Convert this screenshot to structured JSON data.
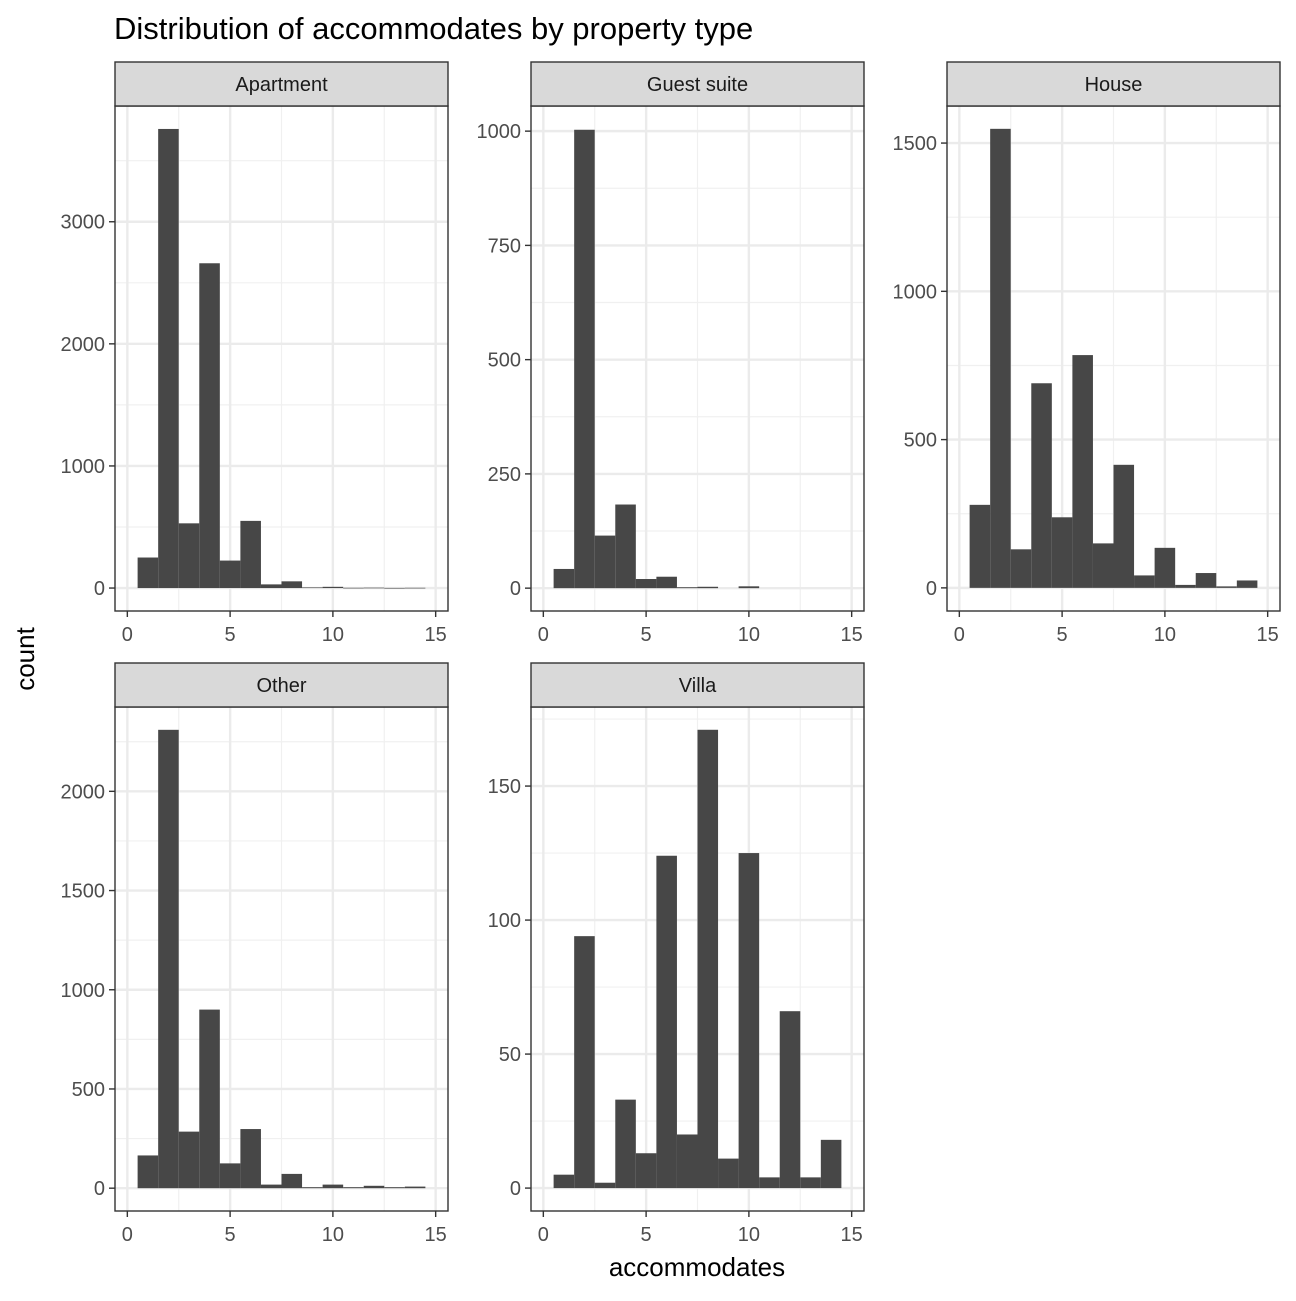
{
  "chart_data": {
    "type": "bar",
    "title": "Distribution of accommodates by property type",
    "xlabel": "accommodates",
    "ylabel": "count",
    "grid": true,
    "bin_width": 1,
    "bin_centers": [
      1,
      2,
      3,
      4,
      5,
      6,
      7,
      8,
      9,
      10,
      11,
      12,
      13,
      14
    ],
    "facets": [
      {
        "name": "Apartment",
        "xlim": [
          -0.6,
          15.6
        ],
        "ylim": [
          -188,
          3948
        ],
        "yticks": [
          0,
          1000,
          2000,
          3000
        ],
        "ytick_labels": [
          "0",
          "1000",
          "2000",
          "3000"
        ],
        "values": [
          250,
          3760,
          530,
          2660,
          225,
          550,
          30,
          55,
          5,
          10,
          2,
          3,
          1,
          2
        ]
      },
      {
        "name": "Guest suite",
        "xlim": [
          -0.6,
          15.6
        ],
        "ylim": [
          -50,
          1055
        ],
        "yticks": [
          0,
          250,
          500,
          750,
          1000
        ],
        "ytick_labels": [
          "0",
          "250",
          "500",
          "750",
          "1000"
        ],
        "values": [
          42,
          1003,
          115,
          183,
          20,
          25,
          2,
          3,
          0,
          4,
          0,
          0,
          0,
          0
        ]
      },
      {
        "name": "House",
        "xlim": [
          -0.6,
          15.6
        ],
        "ylim": [
          -78,
          1625
        ],
        "yticks": [
          0,
          500,
          1000,
          1500
        ],
        "ytick_labels": [
          "0",
          "500",
          "1000",
          "1500"
        ],
        "values": [
          280,
          1548,
          130,
          690,
          238,
          785,
          150,
          415,
          42,
          135,
          10,
          50,
          5,
          25
        ]
      },
      {
        "name": "Other",
        "xlim": [
          -0.6,
          15.6
        ],
        "ylim": [
          -115,
          2425
        ],
        "yticks": [
          0,
          500,
          1000,
          1500,
          2000
        ],
        "ytick_labels": [
          "0",
          "500",
          "1000",
          "1500",
          "2000"
        ],
        "values": [
          165,
          2310,
          285,
          900,
          125,
          298,
          18,
          72,
          5,
          18,
          5,
          12,
          5,
          8
        ]
      },
      {
        "name": "Villa",
        "xlim": [
          -0.6,
          15.6
        ],
        "ylim": [
          -8.55,
          179.5
        ],
        "yticks": [
          0,
          50,
          100,
          150
        ],
        "ytick_labels": [
          "0",
          "50",
          "100",
          "150"
        ],
        "values": [
          5,
          94,
          2,
          33,
          13,
          124,
          20,
          171,
          11,
          125,
          4,
          66,
          4,
          18
        ]
      }
    ],
    "xticks": [
      0,
      5,
      10,
      15
    ],
    "xtick_labels": [
      "0",
      "5",
      "10",
      "15"
    ]
  }
}
